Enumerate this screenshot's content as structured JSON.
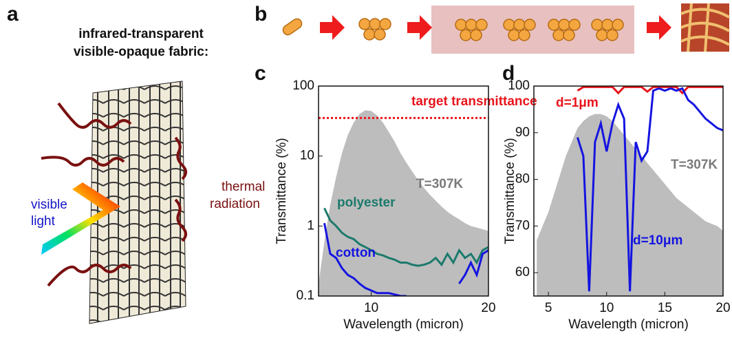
{
  "panel_labels": [
    "a",
    "b",
    "c",
    "d"
  ],
  "panel_a": {
    "title_lines": [
      "infrared-transparent",
      "visible-opaque fabric:"
    ],
    "thermal_label": [
      "thermal",
      "radiation"
    ],
    "visible_label": [
      "visible",
      "light"
    ]
  },
  "chart_data": [
    {
      "type": "line",
      "y_label": "Transmittance (%)",
      "x_label": "Wavelength (micron)",
      "log_y": true,
      "xlim": [
        5.5,
        20
      ],
      "xticks": [
        10,
        20
      ],
      "ylim": [
        0.1,
        100
      ],
      "yticks": [
        0.1,
        1,
        10,
        100
      ],
      "reference_line": {
        "label": "target transmittance",
        "value": 35,
        "color": "#e8141b"
      },
      "x": [
        5.5,
        6,
        6.5,
        7,
        7.5,
        8,
        8.5,
        9,
        9.5,
        10,
        10.5,
        11,
        11.5,
        12,
        12.5,
        13,
        13.5,
        14,
        14.5,
        15,
        15.5,
        16,
        16.5,
        17,
        17.5,
        18,
        18.5,
        19,
        19.5,
        20
      ],
      "series": [
        {
          "name": "T=307K",
          "kind": "area",
          "color": "#bdbdbd",
          "values": [
            0.15,
            0.6,
            2,
            5,
            11,
            20,
            30,
            40,
            45,
            44,
            38,
            30,
            22,
            16,
            11,
            8,
            6,
            4.5,
            3.5,
            2.8,
            2.3,
            1.9,
            1.6,
            1.4,
            1.25,
            1.1,
            1.0,
            0.95,
            0.9,
            0.85
          ]
        },
        {
          "name": "polyester",
          "kind": "line",
          "color": "#1b7a6c",
          "values": [
            null,
            1.8,
            1.2,
            1.0,
            0.8,
            0.7,
            0.65,
            0.55,
            0.5,
            0.45,
            0.4,
            0.38,
            0.35,
            0.33,
            0.3,
            0.3,
            0.28,
            0.27,
            0.28,
            0.3,
            0.35,
            0.28,
            0.4,
            0.3,
            0.45,
            0.35,
            0.4,
            0.3,
            0.45,
            0.5
          ]
        },
        {
          "name": "cotton",
          "kind": "line",
          "color": "#1414e0",
          "values": [
            null,
            1.1,
            0.4,
            0.35,
            0.25,
            0.2,
            0.18,
            0.15,
            0.13,
            0.12,
            0.11,
            0.11,
            0.11,
            0.105,
            0.1,
            0.1,
            null,
            null,
            null,
            null,
            null,
            null,
            null,
            null,
            0.15,
            0.2,
            0.3,
            0.2,
            0.4,
            0.45
          ]
        }
      ]
    },
    {
      "type": "line",
      "y_label": "Transmittance (%)",
      "x_label": "Wavelength (micron)",
      "log_y": false,
      "xlim": [
        3.75,
        20
      ],
      "xticks": [
        5,
        10,
        15,
        20
      ],
      "ylim": [
        55,
        100
      ],
      "yticks": [
        60,
        70,
        80,
        90,
        100
      ],
      "x": [
        4,
        4.5,
        5,
        5.5,
        6,
        6.5,
        7,
        7.5,
        8,
        8.5,
        9,
        9.5,
        10,
        10.5,
        11,
        11.5,
        12,
        12.5,
        13,
        13.5,
        14,
        14.5,
        15,
        15.5,
        16,
        16.5,
        17,
        17.5,
        18,
        18.5,
        19,
        19.5,
        20
      ],
      "series": [
        {
          "name": "T=307K",
          "kind": "area",
          "color": "#bdbdbd",
          "values": [
            67,
            70,
            73,
            77,
            81,
            85,
            88,
            91,
            92.5,
            93.5,
            94,
            94,
            93.5,
            92.5,
            91,
            89.5,
            88,
            86.5,
            85,
            83.5,
            82,
            80.5,
            79,
            77.5,
            76,
            75,
            74,
            73,
            72,
            71,
            70.5,
            70,
            69
          ]
        },
        {
          "name": "d=1μm",
          "kind": "line",
          "color": "#e8141b",
          "values": [
            null,
            null,
            null,
            null,
            null,
            null,
            null,
            99,
            99.8,
            99.8,
            99.8,
            99.8,
            99.8,
            99.8,
            98.5,
            99.8,
            99.8,
            99.8,
            99.8,
            98.8,
            99.8,
            99.8,
            99.8,
            99.8,
            99.8,
            98.5,
            99.8,
            99.8,
            99.8,
            99.8,
            99.8,
            99.8,
            99.8
          ]
        },
        {
          "name": "d=10μm",
          "kind": "line",
          "color": "#1414e0",
          "values": [
            null,
            null,
            null,
            null,
            null,
            null,
            null,
            89,
            85,
            56,
            88,
            92,
            86,
            92,
            96,
            93,
            56,
            88,
            84,
            86,
            99,
            99.5,
            99,
            99.5,
            99,
            99.5,
            97,
            96,
            94.5,
            93,
            92,
            91,
            90.5
          ]
        }
      ]
    }
  ]
}
